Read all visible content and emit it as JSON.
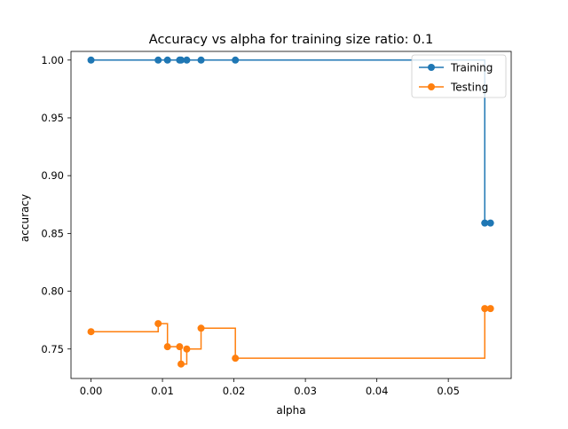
{
  "chart_data": {
    "type": "line",
    "step": "post",
    "title": "Accuracy vs alpha for training size ratio: 0.1",
    "xlabel": "alpha",
    "ylabel": "accuracy",
    "xlim": [
      -0.0028,
      0.0588
    ],
    "ylim": [
      0.7245,
      1.0075
    ],
    "xticks": [
      0.0,
      0.01,
      0.02,
      0.03,
      0.04,
      0.05
    ],
    "xtick_labels": [
      "0.00",
      "0.01",
      "0.02",
      "0.03",
      "0.04",
      "0.05"
    ],
    "yticks": [
      0.75,
      0.8,
      0.85,
      0.9,
      0.95,
      1.0
    ],
    "ytick_labels": [
      "0.75",
      "0.80",
      "0.85",
      "0.90",
      "0.95",
      "1.00"
    ],
    "grid": false,
    "legend": "top-right",
    "x": [
      0.0,
      0.0094,
      0.0107,
      0.0124,
      0.0126,
      0.0134,
      0.0154,
      0.0202,
      0.0551,
      0.0559
    ],
    "series": [
      {
        "name": "Training",
        "color": "#1f77b4",
        "values": [
          1.0,
          1.0,
          1.0,
          1.0,
          1.0,
          1.0,
          1.0,
          1.0,
          0.859,
          0.859
        ]
      },
      {
        "name": "Testing",
        "color": "#ff7f0e",
        "values": [
          0.765,
          0.772,
          0.752,
          0.752,
          0.737,
          0.75,
          0.768,
          0.742,
          0.785,
          0.785
        ]
      }
    ]
  }
}
